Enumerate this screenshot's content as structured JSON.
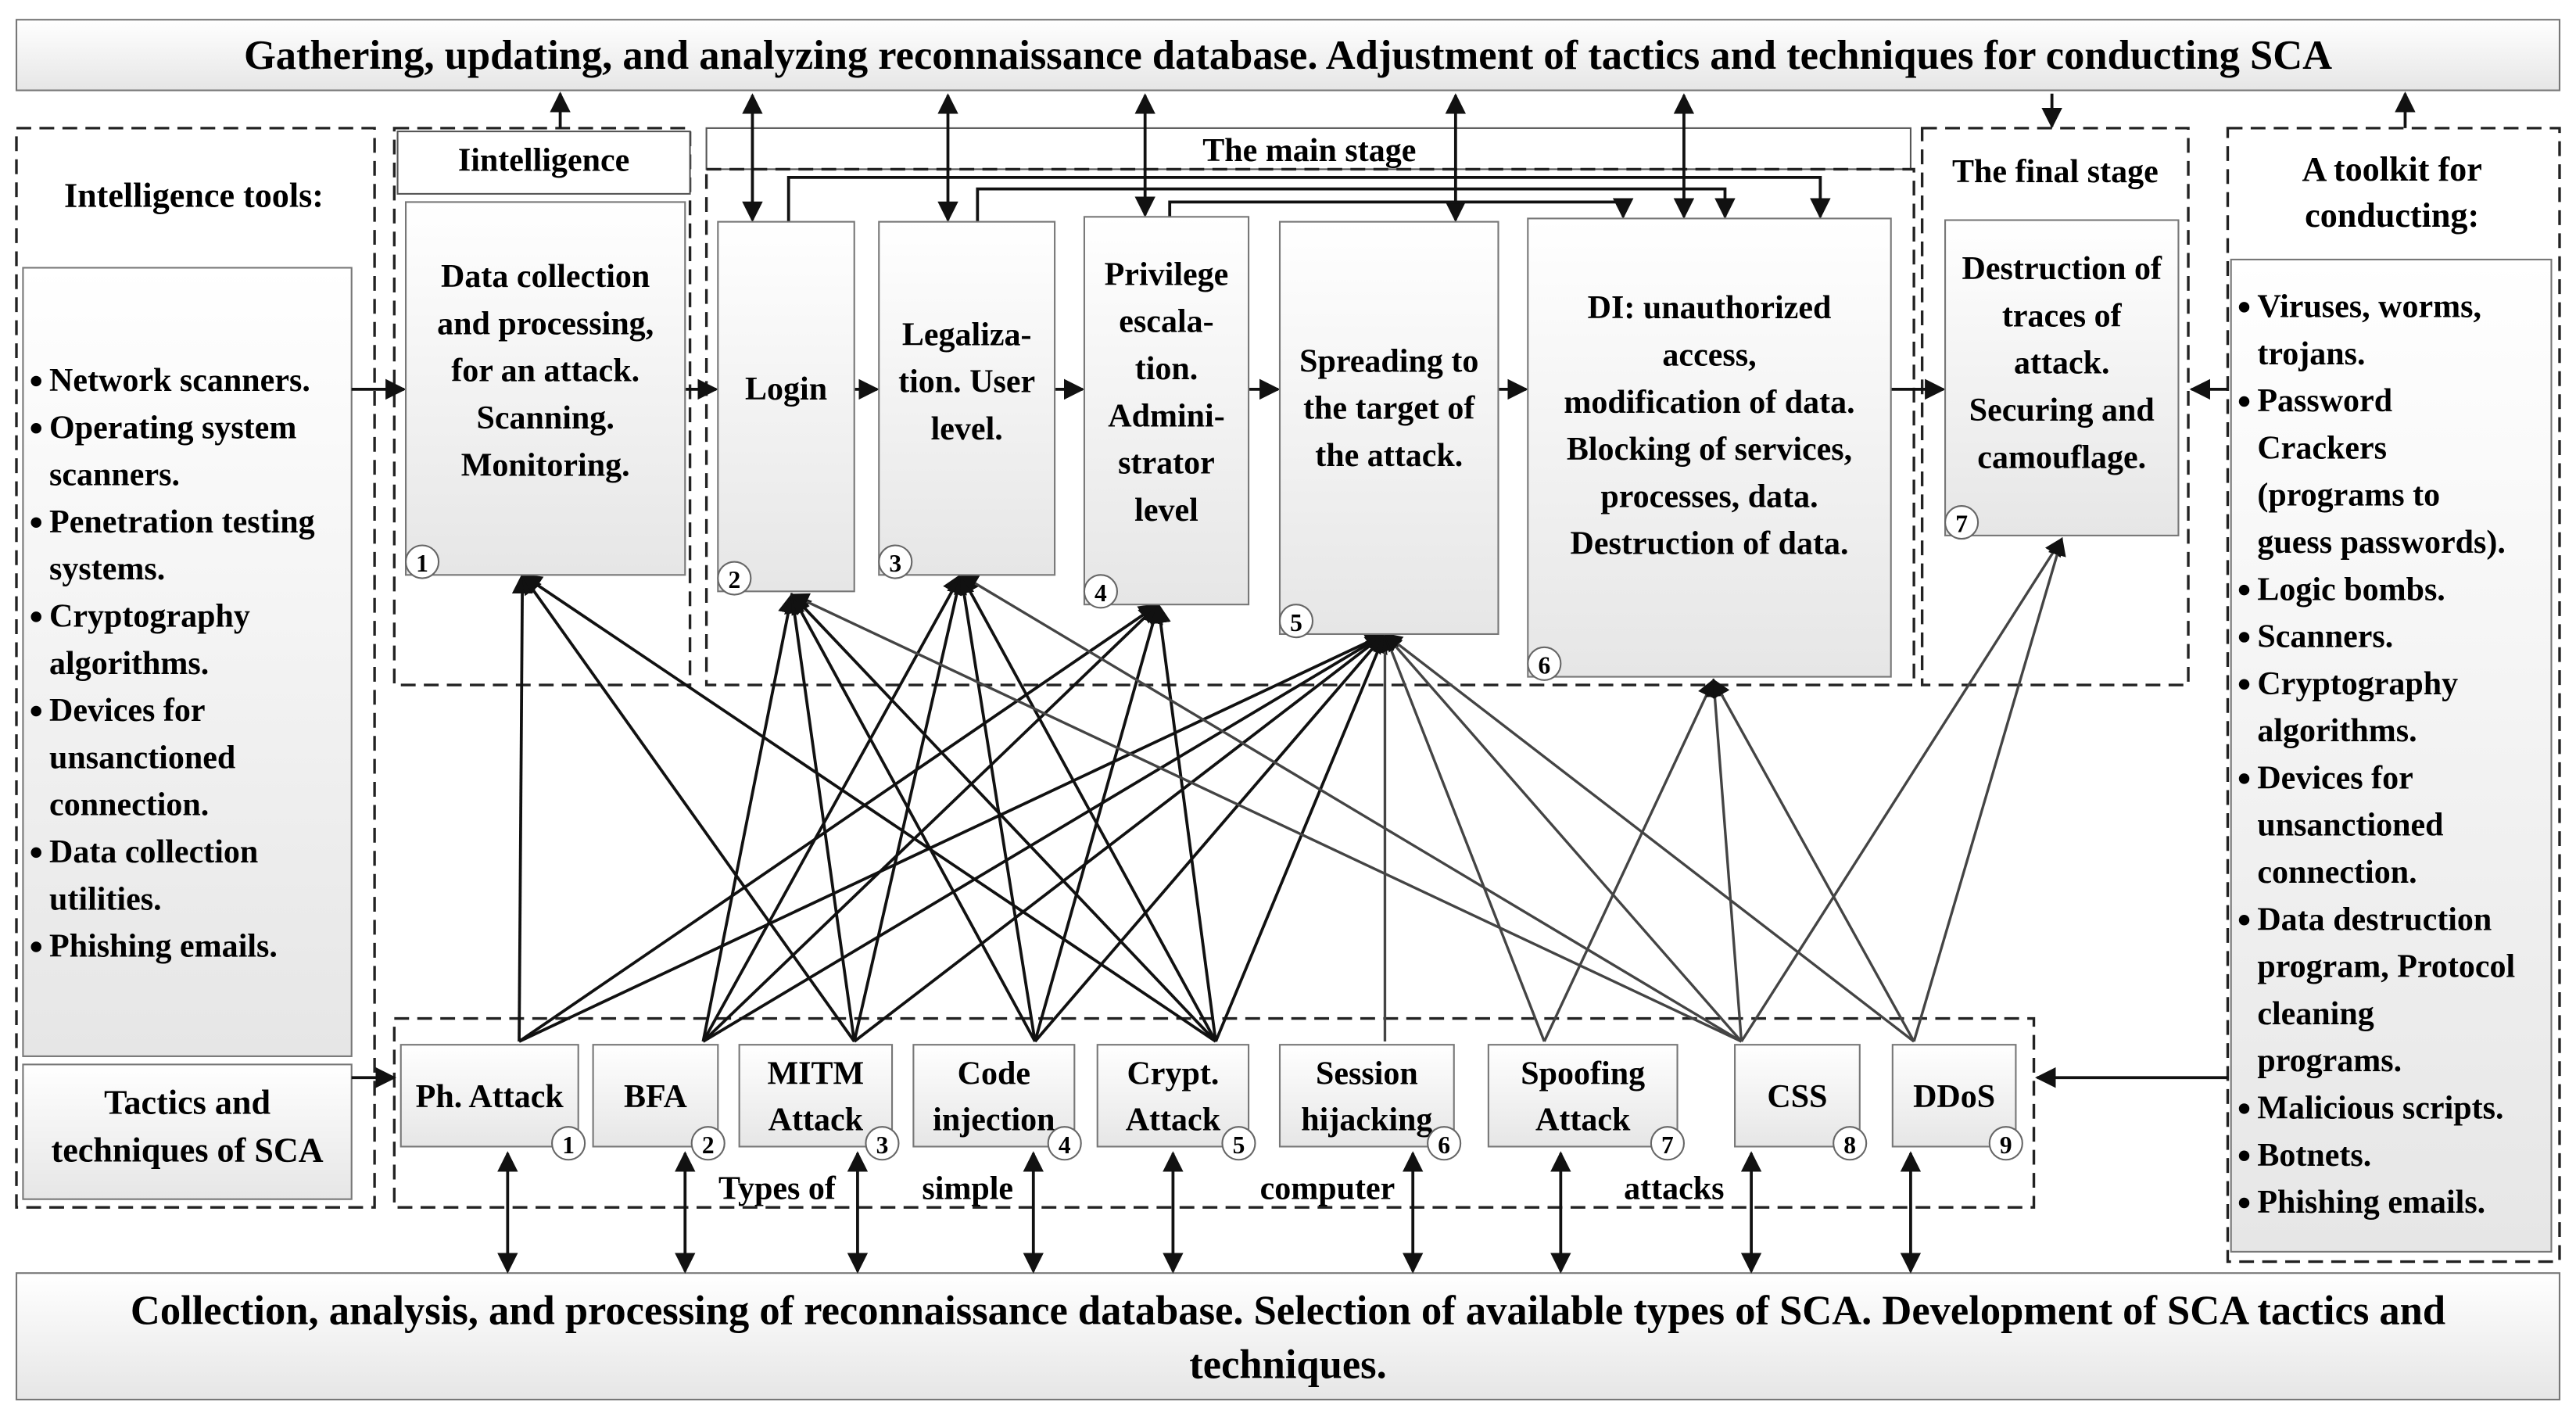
{
  "top_bar": "Gathering, updating, and analyzing reconnaissance database. Adjustment of tactics and techniques for conducting SCA",
  "bottom_bar": [
    "Collection, analysis, and processing of reconnaissance database. Selection of available types of SCA. Development of SCA tactics and",
    "techniques."
  ],
  "intelligence_tools": {
    "title": "Intelligence tools:",
    "items": [
      [
        "Network scanners."
      ],
      [
        "Operating system",
        "scanners."
      ],
      [
        "Penetration testing",
        "systems."
      ],
      [
        "Cryptography",
        "algorithms."
      ],
      [
        "Devices for",
        "unsanctioned",
        "connection."
      ],
      [
        "Data collection",
        "utilities."
      ],
      [
        "Phishing emails."
      ]
    ],
    "tactics": [
      "Tactics and",
      "techniques of SCA"
    ]
  },
  "stages": {
    "intelligence_title": "Iintelligence",
    "main_title": "The main stage",
    "final_title": "The final stage"
  },
  "stage_boxes": [
    {
      "num": "1",
      "lines": [
        "Data collection",
        "and processing,",
        "for an attack.",
        "Scanning.",
        "Monitoring."
      ]
    },
    {
      "num": "2",
      "lines": [
        "Login"
      ]
    },
    {
      "num": "3",
      "lines": [
        "Legaliza-",
        "tion. User",
        "level."
      ]
    },
    {
      "num": "4",
      "lines": [
        "Privilege",
        "escala-",
        "tion.",
        "Admini-",
        "strator",
        "level"
      ]
    },
    {
      "num": "5",
      "lines": [
        "Spreading to",
        "the target of",
        "the attack."
      ]
    },
    {
      "num": "6",
      "lines": [
        "DI: unauthorized",
        "access,",
        "modification of data.",
        "Blocking of services,",
        "processes, data.",
        "Destruction of data."
      ]
    },
    {
      "num": "7",
      "lines": [
        "Destruction of",
        "traces of",
        "attack.",
        "Securing and",
        "camouflage."
      ]
    }
  ],
  "toolkit": {
    "title": [
      "A toolkit for",
      "conducting:"
    ],
    "items": [
      [
        "Viruses, worms,",
        "trojans."
      ],
      [
        "Password",
        "Crackers",
        "(programs to",
        "guess passwords)."
      ],
      [
        "Logic bombs."
      ],
      [
        "Scanners."
      ],
      [
        "Cryptography",
        "algorithms."
      ],
      [
        "Devices for",
        "unsanctioned",
        "connection."
      ],
      [
        "Data destruction",
        "program, Protocol",
        "cleaning",
        "programs."
      ],
      [
        "Malicious scripts."
      ],
      [
        "Botnets."
      ],
      [
        "Phishing emails."
      ]
    ]
  },
  "attacks": [
    {
      "num": "1",
      "lines": [
        "Ph. Attack"
      ],
      "targets": [
        1,
        4,
        5
      ]
    },
    {
      "num": "2",
      "lines": [
        "BFA"
      ],
      "targets": [
        2,
        3,
        4,
        5
      ]
    },
    {
      "num": "3",
      "lines": [
        "MITM",
        "Attack"
      ],
      "targets": [
        1,
        2,
        3,
        5
      ]
    },
    {
      "num": "4",
      "lines": [
        "Code",
        "injection"
      ],
      "targets": [
        2,
        3,
        4,
        5
      ]
    },
    {
      "num": "5",
      "lines": [
        "Crypt.",
        "Attack"
      ],
      "targets": [
        1,
        2,
        3,
        4,
        5
      ]
    },
    {
      "num": "6",
      "lines": [
        "Session",
        "hijacking"
      ],
      "targets": [
        5
      ]
    },
    {
      "num": "7",
      "lines": [
        "Spoofing",
        "Attack"
      ],
      "targets": [
        5,
        6
      ]
    },
    {
      "num": "8",
      "lines": [
        "CSS"
      ],
      "targets": [
        2,
        3,
        5,
        6,
        7
      ]
    },
    {
      "num": "9",
      "lines": [
        "DDoS"
      ],
      "targets": [
        5,
        6,
        7
      ]
    }
  ],
  "attacks_caption": [
    "Types of",
    "simple",
    "computer",
    "attacks"
  ]
}
